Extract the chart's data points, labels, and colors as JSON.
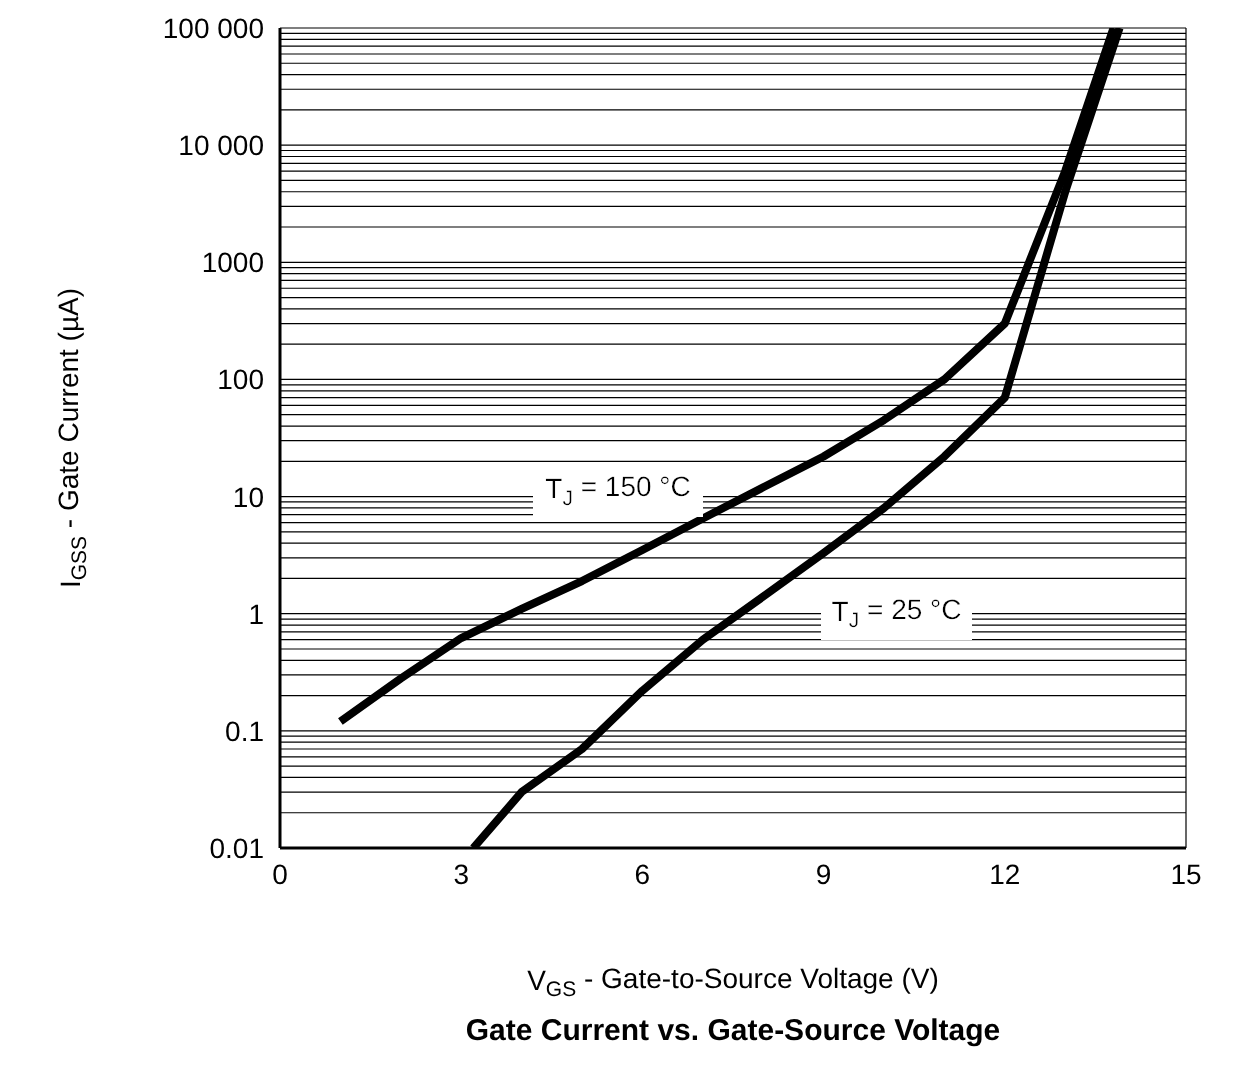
{
  "chart_data": {
    "type": "line",
    "title": "Gate Current vs. Gate-Source Voltage",
    "xlabel": "V$_{GS}$ - Gate-to-Source Voltage (V)",
    "ylabel": "I$_{GSS}$ - Gate Current (µA)",
    "series": [
      {
        "name": "T$_{J}$ = 150 °C",
        "color": "#000000",
        "x": [
          1,
          2,
          3,
          4,
          5,
          6,
          7,
          8,
          9,
          10,
          11,
          12,
          13,
          13.8
        ],
        "values": [
          0.12,
          0.28,
          0.62,
          1.1,
          1.9,
          3.5,
          6.5,
          12,
          22,
          45,
          100,
          300,
          6000,
          100000
        ]
      },
      {
        "name": "T$_{J}$ = 25 °C",
        "color": "#000000",
        "x": [
          3.2,
          4,
          5,
          6,
          7,
          8,
          9,
          10,
          11,
          12,
          13,
          13.9
        ],
        "values": [
          0.01,
          0.03,
          0.07,
          0.22,
          0.6,
          1.4,
          3.3,
          8,
          22,
          70,
          4000,
          100000
        ]
      }
    ],
    "xlim": [
      0,
      15
    ],
    "xticks": [
      0,
      3,
      6,
      9,
      12,
      15
    ],
    "ylim": [
      0.01,
      100000
    ],
    "yticks": [
      0.01,
      0.1,
      1,
      10,
      100,
      1000,
      {
        "value": 10000,
        "label": "10 000"
      },
      {
        "value": 100000,
        "label": "100 000"
      }
    ],
    "log": "y",
    "grid": "y",
    "marker": "none",
    "line_style": "solid"
  }
}
